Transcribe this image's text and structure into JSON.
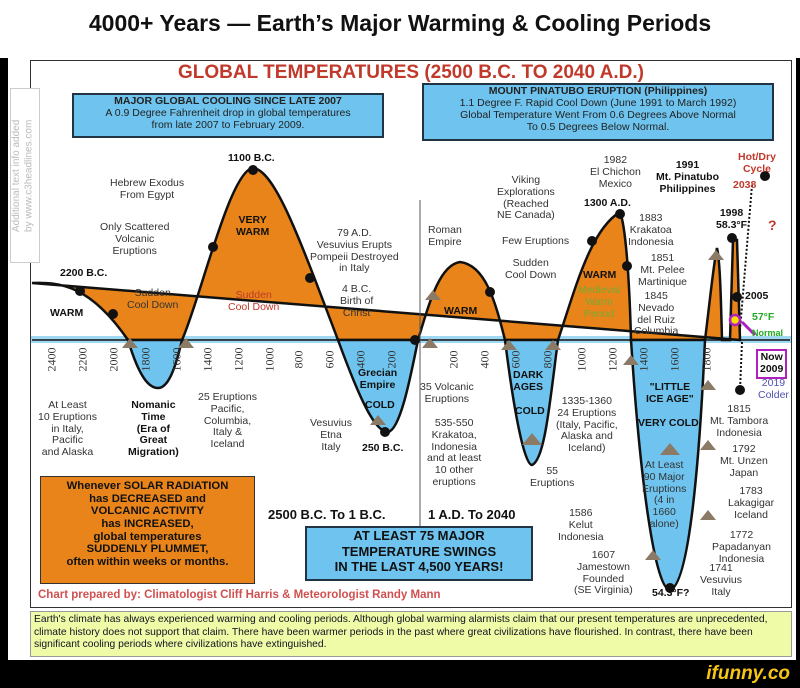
{
  "title": "4000+ Years — Earth’s Major Warming & Cooling Periods",
  "chart_title": "GLOBAL TEMPERATURES (2500 B.C. TO 2040 A.D.)",
  "watermark": "Additional text info added\nby www.c3headlines.com",
  "box_cooling": {
    "heading": "MAJOR GLOBAL COOLING SINCE LATE 2007",
    "body": "A 0.9 Degree Fahrenheit drop in global temperatures\nfrom late 2007 to February 2009."
  },
  "box_pinatubo": {
    "heading": "MOUNT PINATUBO ERUPTION (Philippines)",
    "body": "1.1 Degree F. Rapid Cool Down (June 1991 to March 1992)\nGlobal Temperature Went From 0.6 Degrees Above Normal\nTo 0.5 Degrees Below Normal."
  },
  "ticks_bc": [
    "2400",
    "2200",
    "2000",
    "1800",
    "1600",
    "1400",
    "1200",
    "1000",
    "800",
    "600",
    "400",
    "200"
  ],
  "ticks_ad": [
    "200",
    "400",
    "600",
    "800",
    "1000",
    "1200",
    "1400",
    "1600",
    "1800"
  ],
  "labels": {
    "l2200": "2200 B.C.",
    "warm1": "WARM",
    "sudden1": "Sudden\nCool Down",
    "scattered": "Only Scattered\nVolcanic\nEruptions",
    "exodus": "Hebrew Exodus\nFrom Egypt",
    "l1100": "1100 B.C.",
    "verywarm": "VERY\nWARM",
    "sudden2": "Sudden\nCool Down",
    "vesuvius79": "79 A.D.\nVesuvius Erupts\nPompeii Destroyed\nin Italy",
    "christ": "4 B.C.\nBirth of\nChrist",
    "roman": "Roman\nEmpire",
    "warm2": "WARM",
    "sudden3": "Sudden\nCool Down",
    "viking": "Viking\nExplorations\n(Reached\nNE Canada)",
    "few": "Few Eruptions",
    "l1300": "1300 A.D.",
    "warm3": "WARM",
    "medieval": "Medieval\nWarm\nPeriod",
    "chichon": "1982\nEl Chichon\nMexico",
    "pinatubo": "1991\nMt. Pinatubo\nPhilippines",
    "krakatoa": "1883\nKrakatoa\nIndonesia",
    "pelee": "1851\nMt. Pelee\nMartinique",
    "ruiz": "1845\nNevado\ndel Ruiz\nColumbia",
    "l1998": "1998\n58.3°F",
    "hotdry": "Hot/Dry\nCycle",
    "l2038": "2038",
    "q": "?",
    "l2005": "2005",
    "f57": "57°F",
    "normal": "Normal",
    "now": "Now\n2009",
    "colder": "2019\nColder",
    "atleast10": "At Least\n10 Eruptions\nin Italy,\nPacific\nand Alaska",
    "nomanic": "Nomanic\nTime\n(Era of\nGreat\nMigration)",
    "e25": "25 Eruptions\nPacific,\nColumbia,\nItaly &\nIceland",
    "grecian": "Grecian\nEmpire",
    "cold1": "COLD",
    "vesetna": "Vesuvius\nEtna\nItaly",
    "l250": "250 B.C.",
    "v35": "35 Volcanic\nEruptions",
    "kraka535": "535-550\nKrakatoa,\nIndonesia\nand at least\n10 other\neruptions",
    "darkages": "DARK\nAGES",
    "cold2": "COLD",
    "e55": "55\nEruptions",
    "e1335": "1335-1360\n24 Eruptions\n(Italy, Pacific,\nAlaska and\nIceland)",
    "lia": "\"LITTLE\nICE AGE\"",
    "verycold": "VERY COLD",
    "atleast90": "At Least\n90 Major\nEruptions\n(4 in\n1660\nalone)",
    "tambora": "1815\nMt. Tambora\nIndonesia",
    "unzen": "1792\nMt. Unzen\nJapan",
    "laki": "1783\nLakagigar\nIceland",
    "papa": "1772\nPapadanyan\nIndonesia",
    "ves1741": "1741\nVesuvius\nItaly",
    "kelut": "1586\nKelut\nIndonesia",
    "jamestown": "1607\nJamestown\nFounded\n(SE Virginia)",
    "f543": "54.3°F?"
  },
  "solar_box": "Whenever SOLAR RADIATION\nhas DECREASED and\nVOLCANIC ACTIVITY\nhas INCREASED,\nglobal temperatures\nSUDDENLY PLUMMET,\noften within weeks or months.",
  "period_bc": "2500 B.C. To 1 B.C.",
  "period_ad": "1 A.D. To 2040",
  "swings_box": "AT LEAST 75 MAJOR\nTEMPERATURE SWINGS\nIN THE LAST 4,500 YEARS!",
  "credit": "Chart prepared by: Climatologist Cliff Harris & Meteorologist Randy Mann",
  "note": "Earth's climate has always experienced warming and cooling periods. Although global warming alarmists claim that our present temperatures are unprecedented, climate history does not support that claim. There have been warmer periods in the past where great civilizations have flourished. In contrast, there have been significant cooling periods where civilizations have extinguished.",
  "brand": "ifunny.co",
  "colors": {
    "warm": "#e8841a",
    "cold": "#6ec4ee",
    "title_red": "#d42a2a"
  }
}
